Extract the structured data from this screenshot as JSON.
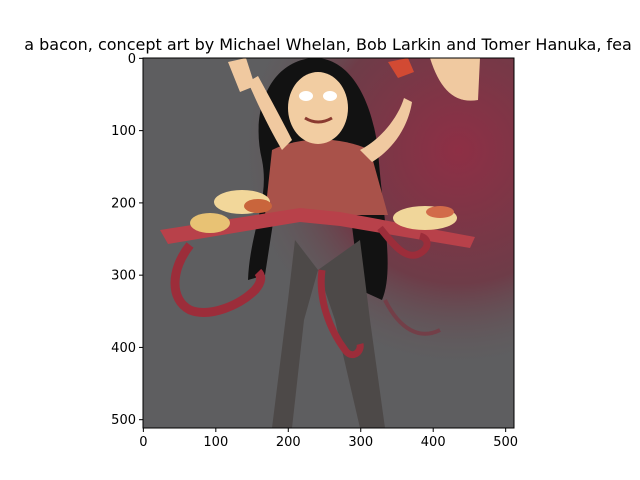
{
  "chart_data": {
    "type": "image",
    "title": "a bacon,  concept art by Michael Whelan, Bob Larkin and Tomer Hanuka, fea",
    "xlabel": "",
    "ylabel": "",
    "xlim": [
      -0.5,
      511.5
    ],
    "ylim": [
      511.5,
      -0.5
    ],
    "x_ticks": [
      0,
      100,
      200,
      300,
      400,
      500
    ],
    "y_ticks": [
      0,
      100,
      200,
      300,
      400,
      500
    ],
    "grid": false,
    "image_description_icon": "generated-artwork-image"
  }
}
